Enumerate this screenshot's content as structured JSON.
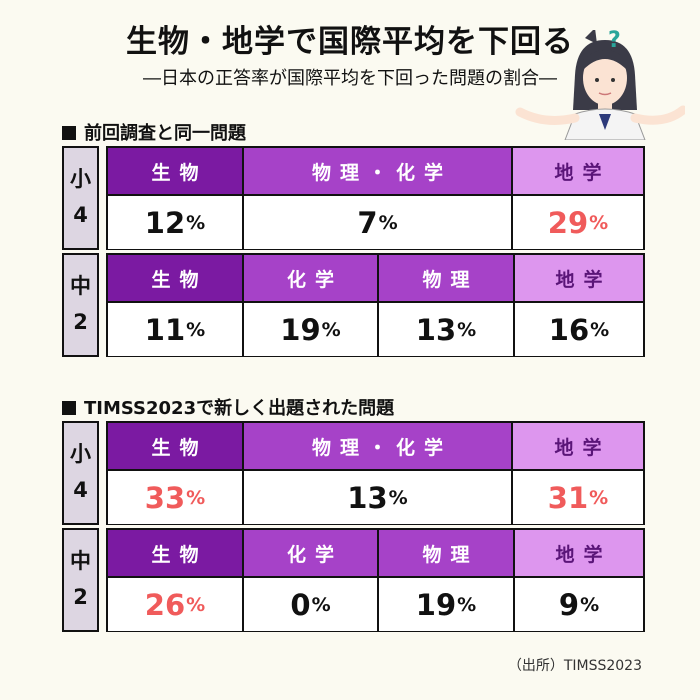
{
  "title": "生物・地学で国際平均を下回る",
  "subtitle": "―日本の正答率が国際平均を下回った問題の割合―",
  "question_mark": "?",
  "source": "（出所）TIMSS2023",
  "colors": {
    "dark": "#7b1aa2",
    "mid": "#a642c8",
    "light": "#dd96ee",
    "highlight": "#f05b5b"
  },
  "sections": [
    {
      "title": "前回調査と同一問題",
      "elem": {
        "grade": [
          "小",
          "4"
        ],
        "headers": [
          "生物",
          "物理・化学",
          "地学"
        ],
        "values": [
          {
            "num": "12",
            "unit": "%",
            "highlight": false
          },
          {
            "num": "7",
            "unit": "%",
            "highlight": false
          },
          {
            "num": "29",
            "unit": "%",
            "highlight": true
          }
        ]
      },
      "middle": {
        "grade": [
          "中",
          "2"
        ],
        "headers": [
          "生物",
          "化学",
          "物理",
          "地学"
        ],
        "values": [
          {
            "num": "11",
            "unit": "%",
            "highlight": false
          },
          {
            "num": "19",
            "unit": "%",
            "highlight": false
          },
          {
            "num": "13",
            "unit": "%",
            "highlight": false
          },
          {
            "num": "16",
            "unit": "%",
            "highlight": false
          }
        ]
      }
    },
    {
      "title": "TIMSS2023で新しく出題された問題",
      "elem": {
        "grade": [
          "小",
          "4"
        ],
        "headers": [
          "生物",
          "物理・化学",
          "地学"
        ],
        "values": [
          {
            "num": "33",
            "unit": "%",
            "highlight": true
          },
          {
            "num": "13",
            "unit": "%",
            "highlight": false
          },
          {
            "num": "31",
            "unit": "%",
            "highlight": true
          }
        ]
      },
      "middle": {
        "grade": [
          "中",
          "2"
        ],
        "headers": [
          "生物",
          "化学",
          "物理",
          "地学"
        ],
        "values": [
          {
            "num": "26",
            "unit": "%",
            "highlight": true
          },
          {
            "num": "0",
            "unit": "%",
            "highlight": false
          },
          {
            "num": "19",
            "unit": "%",
            "highlight": false
          },
          {
            "num": "9",
            "unit": "%",
            "highlight": false
          }
        ]
      }
    }
  ]
}
